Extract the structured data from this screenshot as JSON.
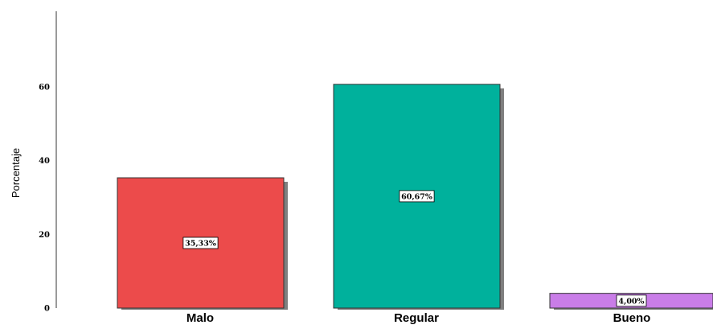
{
  "chart_data": {
    "type": "bar",
    "title": "",
    "xlabel": "",
    "ylabel": "Porcentaje",
    "categories": [
      "Malo",
      "Regular",
      "Bueno"
    ],
    "values": [
      35.33,
      60.67,
      4.0
    ],
    "data_labels": [
      "35,33%",
      "60,67%",
      "4,00%"
    ],
    "yticks": [
      "0",
      "20",
      "40",
      "60"
    ],
    "ylim": [
      0,
      80
    ],
    "grid": false,
    "legend": "none",
    "colors": [
      "#ec4b4b",
      "#00b19c",
      "#c97de8"
    ],
    "shadow_color": "#7f7f7f"
  }
}
